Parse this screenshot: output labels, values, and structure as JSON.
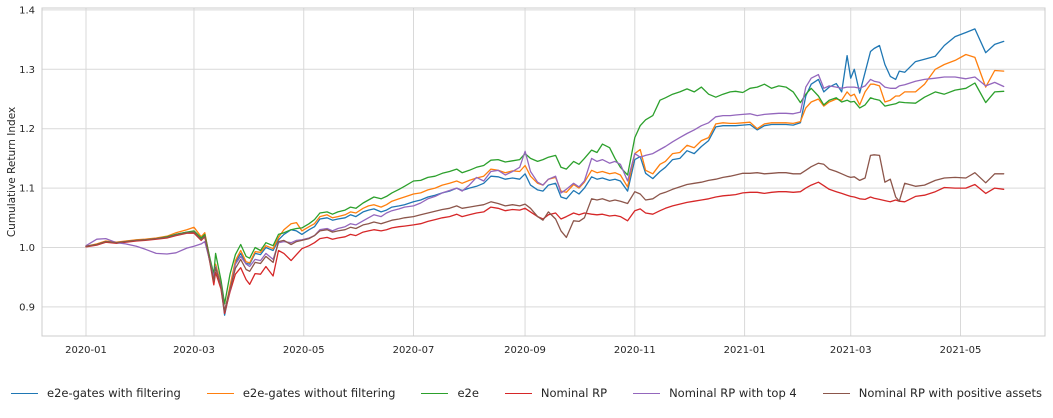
{
  "chart_data": {
    "type": "line",
    "title": "",
    "xlabel": "",
    "ylabel": "Cumulative Return Index",
    "grid": true,
    "legend_position": "bottom",
    "ylim": [
      0.851,
      1.404
    ],
    "y_ticks": [
      0.9,
      1.0,
      1.1,
      1.2,
      1.3,
      1.4
    ],
    "y_tick_labels": [
      "0.9",
      "1.0",
      "1.1",
      "1.2",
      "1.3",
      "1.4"
    ],
    "x_ticks": [
      {
        "date": "2020-01-01",
        "label": "2020-01"
      },
      {
        "date": "2020-03-01",
        "label": "2020-03"
      },
      {
        "date": "2020-05-01",
        "label": "2020-05"
      },
      {
        "date": "2020-07-01",
        "label": "2020-07"
      },
      {
        "date": "2020-09-01",
        "label": "2020-09"
      },
      {
        "date": "2020-11-01",
        "label": "2020-11"
      },
      {
        "date": "2021-01-01",
        "label": "2021-01"
      },
      {
        "date": "2021-03-01",
        "label": "2021-03"
      },
      {
        "date": "2021-05-01",
        "label": "2021-05"
      }
    ],
    "x": [
      "2020-01-01",
      "2020-01-07",
      "2020-01-12",
      "2020-01-18",
      "2020-01-23",
      "2020-01-29",
      "2020-02-03",
      "2020-02-09",
      "2020-02-15",
      "2020-02-20",
      "2020-02-26",
      "2020-03-01",
      "2020-03-05",
      "2020-03-07",
      "2020-03-10",
      "2020-03-12",
      "2020-03-13",
      "2020-03-16",
      "2020-03-18",
      "2020-03-21",
      "2020-03-24",
      "2020-03-27",
      "2020-03-30",
      "2020-04-01",
      "2020-04-04",
      "2020-04-07",
      "2020-04-10",
      "2020-04-14",
      "2020-04-17",
      "2020-04-20",
      "2020-04-24",
      "2020-04-27",
      "2020-04-30",
      "2020-05-04",
      "2020-05-07",
      "2020-05-10",
      "2020-05-14",
      "2020-05-17",
      "2020-05-20",
      "2020-05-24",
      "2020-05-27",
      "2020-05-30",
      "2020-06-03",
      "2020-06-06",
      "2020-06-09",
      "2020-06-13",
      "2020-06-16",
      "2020-06-19",
      "2020-06-23",
      "2020-06-26",
      "2020-07-01",
      "2020-07-05",
      "2020-07-09",
      "2020-07-13",
      "2020-07-17",
      "2020-07-21",
      "2020-07-25",
      "2020-07-28",
      "2020-08-01",
      "2020-08-05",
      "2020-08-09",
      "2020-08-13",
      "2020-08-17",
      "2020-08-21",
      "2020-08-25",
      "2020-08-29",
      "2020-09-01",
      "2020-09-04",
      "2020-09-08",
      "2020-09-11",
      "2020-09-14",
      "2020-09-18",
      "2020-09-21",
      "2020-09-24",
      "2020-09-28",
      "2020-10-01",
      "2020-10-04",
      "2020-10-08",
      "2020-10-11",
      "2020-10-14",
      "2020-10-18",
      "2020-10-21",
      "2020-10-24",
      "2020-10-28",
      "2020-11-01",
      "2020-11-04",
      "2020-11-07",
      "2020-11-11",
      "2020-11-15",
      "2020-11-18",
      "2020-11-22",
      "2020-11-26",
      "2020-11-30",
      "2020-12-04",
      "2020-12-08",
      "2020-12-12",
      "2020-12-16",
      "2020-12-20",
      "2020-12-24",
      "2020-12-27",
      "2020-12-31",
      "2021-01-04",
      "2021-01-08",
      "2021-01-12",
      "2021-01-16",
      "2021-01-20",
      "2021-01-24",
      "2021-01-28",
      "2021-02-01",
      "2021-02-04",
      "2021-02-07",
      "2021-02-11",
      "2021-02-14",
      "2021-02-17",
      "2021-02-21",
      "2021-02-24",
      "2021-02-27",
      "2021-03-01",
      "2021-03-03",
      "2021-03-06",
      "2021-03-09",
      "2021-03-12",
      "2021-03-14",
      "2021-03-17",
      "2021-03-20",
      "2021-03-23",
      "2021-03-26",
      "2021-03-28",
      "2021-03-31",
      "2021-04-06",
      "2021-04-11",
      "2021-04-17",
      "2021-04-22",
      "2021-04-28",
      "2021-05-04",
      "2021-05-09",
      "2021-05-15",
      "2021-05-20",
      "2021-05-25"
    ],
    "series": [
      {
        "name": "e2e-gates with filtering",
        "color": "#1f77b4",
        "values": [
          1.002,
          1.005,
          1.01,
          1.008,
          1.01,
          1.012,
          1.013,
          1.015,
          1.017,
          1.022,
          1.026,
          1.025,
          1.014,
          1.02,
          0.975,
          0.945,
          0.97,
          0.935,
          0.886,
          0.93,
          0.975,
          0.99,
          0.973,
          0.972,
          0.99,
          0.988,
          1.0,
          0.995,
          1.013,
          1.022,
          1.03,
          1.028,
          1.022,
          1.03,
          1.035,
          1.048,
          1.05,
          1.046,
          1.048,
          1.05,
          1.055,
          1.052,
          1.06,
          1.063,
          1.065,
          1.06,
          1.063,
          1.068,
          1.07,
          1.072,
          1.077,
          1.08,
          1.085,
          1.088,
          1.092,
          1.095,
          1.1,
          1.096,
          1.1,
          1.103,
          1.108,
          1.12,
          1.119,
          1.115,
          1.117,
          1.115,
          1.124,
          1.105,
          1.097,
          1.095,
          1.105,
          1.108,
          1.085,
          1.082,
          1.096,
          1.09,
          1.1,
          1.119,
          1.115,
          1.117,
          1.113,
          1.115,
          1.112,
          1.095,
          1.148,
          1.153,
          1.125,
          1.116,
          1.128,
          1.135,
          1.148,
          1.15,
          1.163,
          1.158,
          1.17,
          1.18,
          1.203,
          1.205,
          1.205,
          1.205,
          1.206,
          1.207,
          1.198,
          1.205,
          1.207,
          1.207,
          1.207,
          1.206,
          1.21,
          1.255,
          1.275,
          1.283,
          1.262,
          1.27,
          1.276,
          1.262,
          1.323,
          1.285,
          1.3,
          1.26,
          1.295,
          1.33,
          1.335,
          1.34,
          1.308,
          1.288,
          1.283,
          1.297,
          1.295,
          1.313,
          1.317,
          1.322,
          1.34,
          1.355,
          1.362,
          1.368,
          1.328,
          1.342,
          1.347
        ]
      },
      {
        "name": "e2e-gates without filtering",
        "color": "#ff7f0e",
        "values": [
          1.002,
          1.006,
          1.011,
          1.009,
          1.011,
          1.013,
          1.014,
          1.016,
          1.019,
          1.025,
          1.03,
          1.034,
          1.018,
          1.025,
          0.978,
          0.947,
          0.972,
          0.938,
          0.892,
          0.935,
          0.978,
          0.995,
          0.976,
          0.974,
          0.993,
          0.992,
          1.003,
          0.998,
          1.017,
          1.03,
          1.04,
          1.042,
          1.028,
          1.035,
          1.04,
          1.052,
          1.055,
          1.05,
          1.052,
          1.055,
          1.06,
          1.058,
          1.066,
          1.07,
          1.072,
          1.068,
          1.072,
          1.078,
          1.082,
          1.085,
          1.09,
          1.092,
          1.097,
          1.1,
          1.105,
          1.108,
          1.112,
          1.108,
          1.113,
          1.117,
          1.12,
          1.132,
          1.13,
          1.126,
          1.129,
          1.128,
          1.138,
          1.12,
          1.108,
          1.105,
          1.115,
          1.118,
          1.095,
          1.093,
          1.106,
          1.1,
          1.11,
          1.13,
          1.126,
          1.128,
          1.124,
          1.126,
          1.122,
          1.102,
          1.158,
          1.165,
          1.13,
          1.124,
          1.14,
          1.145,
          1.158,
          1.16,
          1.172,
          1.168,
          1.18,
          1.185,
          1.208,
          1.21,
          1.209,
          1.209,
          1.21,
          1.211,
          1.2,
          1.208,
          1.21,
          1.21,
          1.21,
          1.209,
          1.212,
          1.235,
          1.245,
          1.25,
          1.238,
          1.245,
          1.25,
          1.248,
          1.262,
          1.255,
          1.258,
          1.24,
          1.262,
          1.275,
          1.275,
          1.272,
          1.245,
          1.248,
          1.255,
          1.255,
          1.262,
          1.262,
          1.275,
          1.3,
          1.308,
          1.315,
          1.325,
          1.32,
          1.27,
          1.298,
          1.297
        ]
      },
      {
        "name": "e2e",
        "color": "#2ca02c",
        "values": [
          1.002,
          1.005,
          1.01,
          1.008,
          1.01,
          1.012,
          1.013,
          1.015,
          1.018,
          1.022,
          1.026,
          1.028,
          1.016,
          1.022,
          0.98,
          0.955,
          0.99,
          0.945,
          0.905,
          0.955,
          0.988,
          1.005,
          0.985,
          0.982,
          1.0,
          0.995,
          1.008,
          1.003,
          1.022,
          1.025,
          1.03,
          1.032,
          1.033,
          1.04,
          1.047,
          1.058,
          1.06,
          1.056,
          1.06,
          1.063,
          1.068,
          1.066,
          1.075,
          1.08,
          1.085,
          1.082,
          1.086,
          1.092,
          1.098,
          1.103,
          1.112,
          1.113,
          1.118,
          1.12,
          1.125,
          1.128,
          1.132,
          1.126,
          1.13,
          1.135,
          1.138,
          1.147,
          1.148,
          1.144,
          1.146,
          1.148,
          1.158,
          1.15,
          1.145,
          1.148,
          1.152,
          1.155,
          1.135,
          1.132,
          1.145,
          1.14,
          1.15,
          1.164,
          1.16,
          1.174,
          1.168,
          1.15,
          1.135,
          1.122,
          1.185,
          1.205,
          1.215,
          1.222,
          1.248,
          1.252,
          1.258,
          1.262,
          1.267,
          1.262,
          1.27,
          1.258,
          1.253,
          1.258,
          1.262,
          1.263,
          1.261,
          1.268,
          1.27,
          1.275,
          1.268,
          1.272,
          1.27,
          1.262,
          1.244,
          1.258,
          1.268,
          1.255,
          1.24,
          1.248,
          1.252,
          1.245,
          1.248,
          1.245,
          1.246,
          1.235,
          1.24,
          1.252,
          1.25,
          1.248,
          1.238,
          1.24,
          1.242,
          1.245,
          1.244,
          1.243,
          1.253,
          1.262,
          1.258,
          1.265,
          1.268,
          1.277,
          1.244,
          1.262,
          1.263
        ]
      },
      {
        "name": "Nominal RP",
        "color": "#d62728",
        "values": [
          1.001,
          1.004,
          1.009,
          1.007,
          1.009,
          1.011,
          1.012,
          1.014,
          1.016,
          1.02,
          1.024,
          1.024,
          1.012,
          1.018,
          0.972,
          0.937,
          0.958,
          0.93,
          0.889,
          0.925,
          0.955,
          0.966,
          0.946,
          0.938,
          0.956,
          0.955,
          0.968,
          0.952,
          0.995,
          0.99,
          0.978,
          0.988,
          0.998,
          1.003,
          1.008,
          1.015,
          1.017,
          1.014,
          1.016,
          1.018,
          1.022,
          1.02,
          1.026,
          1.028,
          1.03,
          1.028,
          1.03,
          1.033,
          1.035,
          1.036,
          1.038,
          1.04,
          1.044,
          1.047,
          1.05,
          1.052,
          1.056,
          1.052,
          1.055,
          1.058,
          1.06,
          1.068,
          1.066,
          1.062,
          1.064,
          1.063,
          1.066,
          1.06,
          1.052,
          1.048,
          1.055,
          1.058,
          1.048,
          1.052,
          1.058,
          1.055,
          1.058,
          1.056,
          1.055,
          1.056,
          1.053,
          1.054,
          1.052,
          1.045,
          1.062,
          1.065,
          1.058,
          1.056,
          1.062,
          1.066,
          1.07,
          1.073,
          1.076,
          1.078,
          1.08,
          1.082,
          1.085,
          1.087,
          1.088,
          1.089,
          1.092,
          1.093,
          1.093,
          1.091,
          1.093,
          1.094,
          1.094,
          1.093,
          1.094,
          1.1,
          1.105,
          1.11,
          1.104,
          1.098,
          1.094,
          1.091,
          1.088,
          1.086,
          1.085,
          1.082,
          1.081,
          1.085,
          1.083,
          1.081,
          1.079,
          1.077,
          1.08,
          1.078,
          1.077,
          1.086,
          1.088,
          1.094,
          1.101,
          1.1,
          1.1,
          1.106,
          1.091,
          1.1,
          1.098
        ]
      },
      {
        "name": "Nominal RP with top 4",
        "color": "#9467bd",
        "values": [
          1.003,
          1.014,
          1.015,
          1.008,
          1.006,
          1.002,
          0.997,
          0.99,
          0.989,
          0.991,
          0.999,
          1.002,
          1.006,
          1.01,
          0.975,
          0.95,
          0.968,
          0.936,
          0.894,
          0.928,
          0.972,
          0.985,
          0.972,
          0.968,
          0.98,
          0.978,
          0.99,
          0.98,
          1.008,
          1.01,
          1.008,
          1.012,
          1.013,
          1.016,
          1.02,
          1.03,
          1.032,
          1.028,
          1.032,
          1.035,
          1.04,
          1.038,
          1.045,
          1.05,
          1.055,
          1.052,
          1.058,
          1.062,
          1.065,
          1.068,
          1.07,
          1.075,
          1.082,
          1.086,
          1.092,
          1.096,
          1.1,
          1.095,
          1.105,
          1.118,
          1.112,
          1.128,
          1.13,
          1.122,
          1.128,
          1.135,
          1.162,
          1.128,
          1.11,
          1.105,
          1.115,
          1.12,
          1.092,
          1.098,
          1.108,
          1.102,
          1.112,
          1.15,
          1.145,
          1.148,
          1.142,
          1.145,
          1.14,
          1.112,
          1.158,
          1.152,
          1.155,
          1.158,
          1.165,
          1.17,
          1.178,
          1.185,
          1.192,
          1.198,
          1.205,
          1.21,
          1.22,
          1.222,
          1.222,
          1.223,
          1.224,
          1.225,
          1.222,
          1.224,
          1.225,
          1.226,
          1.226,
          1.225,
          1.228,
          1.27,
          1.285,
          1.291,
          1.268,
          1.272,
          1.27,
          1.268,
          1.27,
          1.27,
          1.27,
          1.268,
          1.272,
          1.283,
          1.28,
          1.278,
          1.27,
          1.268,
          1.268,
          1.272,
          1.274,
          1.28,
          1.283,
          1.285,
          1.287,
          1.287,
          1.284,
          1.287,
          1.272,
          1.278,
          1.271
        ]
      },
      {
        "name": "Nominal RP with positive assets",
        "color": "#8c564b",
        "values": [
          1.002,
          1.005,
          1.01,
          1.008,
          1.01,
          1.012,
          1.013,
          1.015,
          1.017,
          1.021,
          1.025,
          1.026,
          1.013,
          1.019,
          0.974,
          0.944,
          0.966,
          0.934,
          0.893,
          0.93,
          0.965,
          0.98,
          0.963,
          0.96,
          0.975,
          0.973,
          0.985,
          0.975,
          1.01,
          1.012,
          1.005,
          1.01,
          1.012,
          1.015,
          1.02,
          1.028,
          1.03,
          1.026,
          1.028,
          1.03,
          1.034,
          1.032,
          1.038,
          1.04,
          1.043,
          1.04,
          1.043,
          1.046,
          1.048,
          1.05,
          1.052,
          1.055,
          1.058,
          1.061,
          1.064,
          1.066,
          1.07,
          1.066,
          1.068,
          1.07,
          1.072,
          1.077,
          1.074,
          1.07,
          1.072,
          1.07,
          1.073,
          1.066,
          1.052,
          1.046,
          1.06,
          1.048,
          1.028,
          1.017,
          1.045,
          1.044,
          1.05,
          1.082,
          1.08,
          1.082,
          1.078,
          1.08,
          1.078,
          1.074,
          1.094,
          1.09,
          1.08,
          1.082,
          1.09,
          1.093,
          1.098,
          1.102,
          1.106,
          1.108,
          1.11,
          1.113,
          1.115,
          1.118,
          1.12,
          1.122,
          1.125,
          1.125,
          1.126,
          1.124,
          1.125,
          1.126,
          1.126,
          1.124,
          1.124,
          1.13,
          1.136,
          1.142,
          1.14,
          1.132,
          1.128,
          1.124,
          1.12,
          1.118,
          1.119,
          1.113,
          1.117,
          1.155,
          1.156,
          1.155,
          1.11,
          1.115,
          1.085,
          1.078,
          1.108,
          1.103,
          1.105,
          1.113,
          1.117,
          1.118,
          1.117,
          1.126,
          1.109,
          1.124,
          1.124
        ]
      }
    ]
  },
  "style": {
    "grid_color": "#d9d9d9",
    "frame_color": "#cccccc",
    "tick_color": "#262626",
    "background": "#ffffff"
  }
}
